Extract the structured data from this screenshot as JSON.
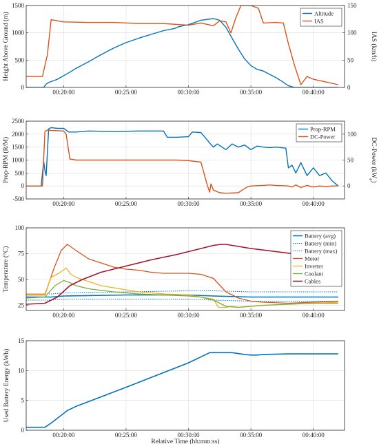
{
  "chart_data": [
    {
      "type": "line",
      "xlabel": "",
      "ylabel": "Height Above Ground (m)",
      "y2label": "IAS (km/h)",
      "ylim": [
        0,
        1500
      ],
      "y2lim": [
        0,
        150
      ],
      "yticks": [
        "0",
        "500",
        "1000",
        "1500"
      ],
      "y2ticks": [
        "0",
        "50",
        "100",
        "150"
      ],
      "xlim_min": [
        17,
        42.5
      ],
      "xticks": [
        "00:20:00",
        "00:25:00",
        "00:30:00",
        "00:35:00",
        "00:40:00"
      ],
      "grid": true,
      "legend": "top-right",
      "series": [
        {
          "name": "Altitude",
          "axis": "left",
          "color": "#0072BD",
          "x": [
            17,
            18.4,
            18.6,
            18.8,
            19.5,
            20.5,
            21,
            22,
            23,
            24,
            25,
            26,
            27,
            28,
            28.9,
            29.2,
            29.4,
            30,
            31,
            32,
            32.5,
            33,
            33.5,
            34,
            34.5,
            35,
            35.5,
            36,
            37,
            37.5,
            38,
            38.5,
            42
          ],
          "y": [
            0,
            0,
            60,
            90,
            150,
            280,
            350,
            470,
            600,
            720,
            820,
            900,
            970,
            1040,
            1080,
            1110,
            1120,
            1150,
            1230,
            1260,
            1230,
            1100,
            900,
            700,
            520,
            400,
            330,
            300,
            180,
            110,
            30,
            0,
            0
          ]
        },
        {
          "name": "IAS",
          "axis": "right",
          "color": "#D95319",
          "x": [
            17,
            18.3,
            18.7,
            19,
            20,
            22,
            24,
            26,
            28,
            30,
            31,
            32,
            32.5,
            33,
            33.4,
            33.8,
            34.2,
            35,
            35.6,
            36,
            37,
            37.6,
            38,
            38.5,
            39,
            39.5,
            40,
            41,
            42
          ],
          "y": [
            20,
            20,
            60,
            124,
            120,
            119,
            119,
            117,
            117,
            114,
            118,
            113,
            122,
            120,
            100,
            128,
            150,
            150,
            145,
            118,
            119,
            118,
            80,
            40,
            5,
            20,
            15,
            10,
            5
          ]
        }
      ]
    },
    {
      "type": "line",
      "xlabel": "",
      "ylabel": "Prop-RPM (R/M)",
      "y2label": "DC-Power (kW",
      "y2label_sub": "e",
      "y2label_end": ")",
      "ylim": [
        -500,
        2500
      ],
      "y2lim": [
        -25,
        125
      ],
      "yticks": [
        "-500",
        "0",
        "500",
        "1000",
        "1500",
        "2000",
        "2500"
      ],
      "y2ticks": [
        "0",
        "50",
        "100"
      ],
      "xlim_min": [
        17,
        42.5
      ],
      "xticks": [
        "00:20:00",
        "00:25:00",
        "00:30:00",
        "00:35:00",
        "00:40:00"
      ],
      "grid": true,
      "legend": "top-right",
      "series": [
        {
          "name": "Prop-RPM",
          "axis": "left",
          "color": "#0072BD",
          "x": [
            17,
            18.2,
            18.4,
            18.5,
            18.6,
            18.8,
            19,
            19.5,
            20,
            20.4,
            21,
            22,
            24,
            26,
            28,
            28.3,
            29,
            30,
            30.3,
            31,
            31.4,
            31.8,
            32,
            32.3,
            33,
            33.5,
            34,
            34.5,
            35,
            35.5,
            36,
            36.5,
            37,
            37.8,
            38,
            38.3,
            38.6,
            39,
            39.5,
            40,
            40.5,
            41,
            41.5,
            42
          ],
          "y": [
            0,
            0,
            950,
            600,
            400,
            2200,
            2250,
            2220,
            2220,
            2080,
            2080,
            2120,
            2100,
            2120,
            2120,
            1880,
            1880,
            1900,
            2080,
            2060,
            1830,
            1600,
            1500,
            1620,
            1400,
            1620,
            1500,
            1580,
            1400,
            1540,
            1500,
            1480,
            1500,
            1460,
            700,
            800,
            500,
            900,
            400,
            700,
            400,
            500,
            200,
            0
          ]
        },
        {
          "name": "DC-Power",
          "axis": "right",
          "color": "#D95319",
          "x": [
            17,
            18.3,
            18.5,
            18.7,
            19,
            20,
            20.2,
            20.5,
            21,
            24,
            27,
            29,
            30,
            31,
            31.5,
            31.7,
            31.8,
            32,
            32.5,
            33,
            34,
            34.3,
            34.7,
            35,
            36,
            36.5,
            37,
            38,
            38.3,
            38.6,
            39,
            39.5,
            40,
            40.5,
            41,
            41.5,
            42
          ],
          "y": [
            0,
            0,
            105,
            108,
            107,
            106,
            100,
            52,
            50,
            50,
            50,
            50,
            49,
            46,
            2,
            -12,
            4,
            -8,
            -13,
            -14,
            -13,
            -8,
            -2,
            0,
            1,
            2,
            1,
            0,
            -2,
            2,
            -3,
            1,
            -2,
            0,
            -1,
            0,
            0
          ]
        }
      ]
    },
    {
      "type": "line",
      "xlabel": "",
      "ylabel": "Temperature (°C)",
      "ylim": [
        20,
        100
      ],
      "yticks": [
        "25",
        "50",
        "75",
        "100"
      ],
      "xlim_min": [
        17,
        42.5
      ],
      "xticks": [
        "00:20:00",
        "00:25:00",
        "00:30:00",
        "00:35:00",
        "00:40:00"
      ],
      "grid": true,
      "legend": "top-right",
      "series": [
        {
          "name": "Battery (avg)",
          "color": "#0072BD",
          "dash": "",
          "width": 1.6,
          "x": [
            17,
            19,
            20,
            25,
            30,
            32,
            35,
            42
          ],
          "y": [
            33,
            33,
            34,
            35,
            35,
            34,
            33,
            33
          ]
        },
        {
          "name": "Battery (min)",
          "color": "#0072BD",
          "dash": "1.5,1.5",
          "width": 1,
          "x": [
            17,
            19,
            20,
            25,
            30,
            32,
            35,
            42
          ],
          "y": [
            30,
            30,
            31,
            31,
            31,
            30,
            29,
            29
          ]
        },
        {
          "name": "Battery (max)",
          "color": "#0072BD",
          "dash": "1.5,1.5",
          "width": 1,
          "x": [
            17,
            19,
            20,
            25,
            30,
            32,
            35,
            42
          ],
          "y": [
            36,
            36,
            37,
            38,
            39,
            39,
            38,
            38
          ]
        },
        {
          "name": "Motor",
          "color": "#D95319",
          "dash": "",
          "width": 1.3,
          "x": [
            17,
            18.5,
            19.2,
            19.8,
            20.3,
            21,
            22,
            23,
            24,
            25,
            26,
            27,
            28,
            29,
            30,
            31,
            32,
            33,
            34,
            35,
            36,
            38,
            40,
            42
          ],
          "y": [
            35,
            35,
            60,
            78,
            84,
            78,
            70,
            66,
            62,
            60,
            59,
            57,
            56,
            56,
            56,
            55,
            51,
            38,
            32,
            29,
            28,
            27,
            28,
            29
          ]
        },
        {
          "name": "Inverter",
          "color": "#EDB120",
          "dash": "",
          "width": 1.3,
          "x": [
            17,
            18.5,
            19,
            19.6,
            20.2,
            20.6,
            21,
            22,
            23,
            24,
            25,
            26,
            28,
            30,
            31,
            32,
            32.4,
            33,
            33.5,
            34,
            35,
            36,
            38,
            40,
            42
          ],
          "y": [
            36,
            36,
            52,
            56,
            61,
            55,
            52,
            48,
            44,
            42,
            40,
            38,
            36,
            35,
            33,
            31,
            23,
            23,
            24,
            23,
            24,
            25,
            26,
            27,
            28
          ]
        },
        {
          "name": "Coolant",
          "color": "#77AC30",
          "dash": "",
          "width": 1.3,
          "x": [
            17,
            18.5,
            19.3,
            20,
            20.5,
            21,
            22,
            24,
            26,
            28,
            30,
            31,
            32,
            33,
            34,
            35,
            36,
            38,
            40,
            42
          ],
          "y": [
            32,
            33,
            44,
            49,
            47,
            44,
            41,
            38,
            36,
            35,
            34,
            33,
            30,
            24,
            23,
            24,
            25,
            26,
            27,
            27
          ]
        },
        {
          "name": "Cables",
          "color": "#A2142F",
          "dash": "",
          "width": 1.6,
          "x": [
            17,
            18.5,
            19.5,
            20.5,
            21.5,
            23,
            25,
            27,
            29,
            30,
            31,
            32,
            32.6,
            33,
            35,
            37,
            39,
            41,
            42
          ],
          "y": [
            26,
            27,
            33,
            44,
            50,
            57,
            63,
            69,
            74,
            77,
            80,
            83,
            84,
            84,
            80,
            77,
            74,
            71,
            70
          ]
        }
      ]
    },
    {
      "type": "line",
      "xlabel": "Relative Time (hh:mm:ss)",
      "ylabel": "Used Battery Energy (kWh)",
      "ylim": [
        0,
        15
      ],
      "yticks": [
        "0",
        "5",
        "10",
        "15"
      ],
      "xlim_min": [
        17,
        42.5
      ],
      "xticks": [
        "00:20:00",
        "00:25:00",
        "00:30:00",
        "00:35:00",
        "00:40:00"
      ],
      "grid": true,
      "legend": "none",
      "series": [
        {
          "color": "#0072BD",
          "dash": "",
          "width": 1.6,
          "x": [
            17,
            18.5,
            19,
            20.3,
            21,
            25,
            30,
            31.7,
            32,
            33.5,
            34.5,
            35,
            35.5,
            36,
            38,
            42
          ],
          "y": [
            0.5,
            0.5,
            1.2,
            3.3,
            4,
            7.2,
            11.3,
            13,
            13,
            13,
            12.7,
            12.6,
            12.6,
            12.7,
            12.8,
            12.8
          ]
        }
      ]
    }
  ]
}
